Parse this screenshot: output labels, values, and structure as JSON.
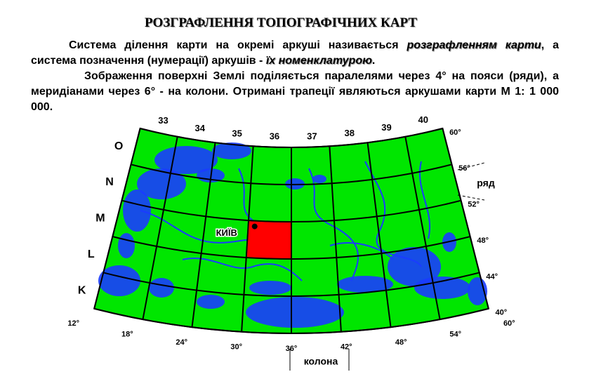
{
  "header": {
    "title": "РОЗГРАФЛЕННЯ ТОПОГРАФІЧНИХ КАРТ"
  },
  "text": {
    "paragraph_1": [
      "Система ділення карти на окремі аркуші називається ",
      "розграфленням карти",
      ", а система позначення (нумерації) аркушів - ",
      "їх номенклатурою",
      "."
    ],
    "paragraph_2": "Зображення поверхні Землі поділяється паралелями через 4° на пояси (ряди), а меридіанами через 6° - на колони. Отримані трапеції являються аркушами карти М 1: 1 000 000."
  },
  "map": {
    "columns": [
      "33",
      "34",
      "35",
      "36",
      "37",
      "38",
      "39",
      "40"
    ],
    "rows": [
      "O",
      "N",
      "M",
      "L",
      "K"
    ],
    "latitudes": [
      "60°",
      "56°",
      "52°",
      "48°",
      "44°",
      "40°"
    ],
    "longitudes": [
      "12°",
      "18°",
      "24°",
      "30°",
      "36°",
      "42°",
      "48°",
      "54°",
      "60°"
    ],
    "row_label": "ряд",
    "column_label": "колона",
    "city": "КИЇВ"
  }
}
